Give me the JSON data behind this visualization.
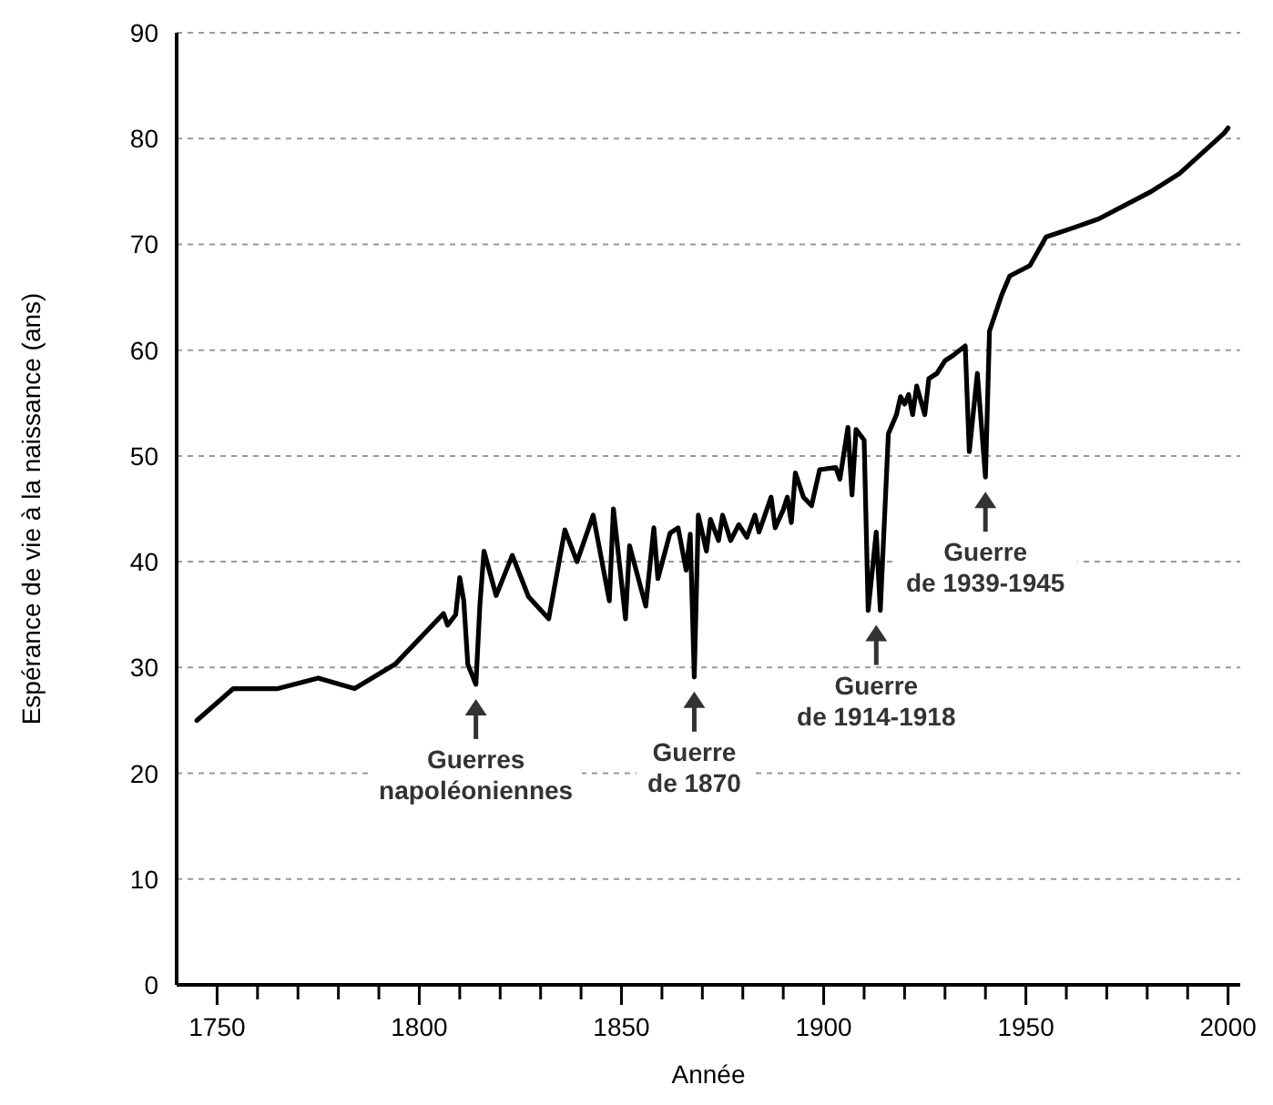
{
  "chart_data": {
    "type": "line",
    "xlabel": "Année",
    "ylabel": "Espérance de vie à la naissance (ans)",
    "x": [
      1745,
      1754,
      1765,
      1775,
      1784,
      1794,
      1806,
      1807,
      1809,
      1810,
      1811,
      1812,
      1814,
      1815,
      1816,
      1819,
      1823,
      1827,
      1832,
      1836,
      1839,
      1843,
      1847,
      1848,
      1851,
      1852,
      1856,
      1858,
      1859,
      1862,
      1864,
      1866,
      1867,
      1868,
      1869,
      1871,
      1872,
      1874,
      1875,
      1877,
      1879,
      1881,
      1883,
      1884,
      1887,
      1888,
      1890,
      1891,
      1892,
      1893,
      1895,
      1897,
      1899,
      1903,
      1904,
      1906,
      1907,
      1908,
      1910,
      1911,
      1913,
      1914,
      1916,
      1918,
      1919,
      1920,
      1921,
      1922,
      1923,
      1925,
      1926,
      1928,
      1930,
      1932,
      1935,
      1936,
      1938,
      1940,
      1941,
      1944,
      1946,
      1951,
      1955,
      1962,
      1968,
      1981,
      1988,
      1999,
      2000
    ],
    "series": [
      {
        "color": "#000000",
        "values": [
          25,
          28,
          28,
          29,
          28,
          30.3,
          35.1,
          34,
          35,
          38.5,
          36.3,
          30.3,
          28.4,
          36,
          41,
          36.8,
          40.6,
          36.7,
          34.6,
          43,
          40,
          44.4,
          36.3,
          45,
          34.6,
          41.5,
          35.8,
          43.2,
          38.4,
          42.7,
          43.2,
          39.2,
          42.6,
          29.1,
          44.4,
          41,
          44,
          42,
          44.4,
          42,
          43.5,
          42.3,
          44.4,
          42.8,
          46.1,
          43.2,
          44.9,
          46.1,
          43.7,
          48.4,
          46.1,
          45.3,
          48.7,
          48.9,
          47.8,
          52.7,
          46.3,
          52.5,
          51.5,
          35.4,
          42.8,
          35.4,
          52.1,
          53.9,
          55.6,
          54.9,
          55.8,
          53.9,
          56.6,
          53.9,
          57.3,
          57.8,
          59,
          59.5,
          60.4,
          50.4,
          57.8,
          48,
          61.8,
          65.2,
          67,
          68,
          70.7,
          71.6,
          72.4,
          75,
          76.7,
          80.5,
          81
        ]
      }
    ],
    "xlim": [
      1740,
      2003
    ],
    "xticks": [
      1750,
      {
        "value": 1760,
        "label": null
      },
      {
        "value": 1770,
        "label": null
      },
      {
        "value": 1780,
        "label": null
      },
      {
        "value": 1790,
        "label": null
      },
      1800,
      {
        "value": 1810,
        "label": null
      },
      {
        "value": 1820,
        "label": null
      },
      {
        "value": 1830,
        "label": null
      },
      {
        "value": 1840,
        "label": null
      },
      1850,
      {
        "value": 1860,
        "label": null
      },
      {
        "value": 1870,
        "label": null
      },
      {
        "value": 1880,
        "label": null
      },
      {
        "value": 1890,
        "label": null
      },
      1900,
      {
        "value": 1910,
        "label": null
      },
      {
        "value": 1920,
        "label": null
      },
      {
        "value": 1930,
        "label": null
      },
      {
        "value": 1940,
        "label": null
      },
      1950,
      {
        "value": 1960,
        "label": null
      },
      {
        "value": 1970,
        "label": null
      },
      {
        "value": 1980,
        "label": null
      },
      {
        "value": 1990,
        "label": null
      },
      2000
    ],
    "ylim": [
      0,
      90
    ],
    "yticks": [
      0,
      10,
      20,
      30,
      40,
      50,
      60,
      70,
      80,
      90
    ],
    "grid": "y",
    "marker": "none",
    "line_style": "solid",
    "annotations": [
      {
        "text": "Guerres\nnapoléoniennes",
        "x": 1814,
        "y": 28.4
      },
      {
        "text": "Guerre\nde 1870",
        "x": 1868,
        "y": 29.1
      },
      {
        "text": "Guerre\nde 1914-1918",
        "x": 1913,
        "y": 35.4
      },
      {
        "text": "Guerre\nde 1939-1945",
        "x": 1940,
        "y": 48
      }
    ]
  }
}
